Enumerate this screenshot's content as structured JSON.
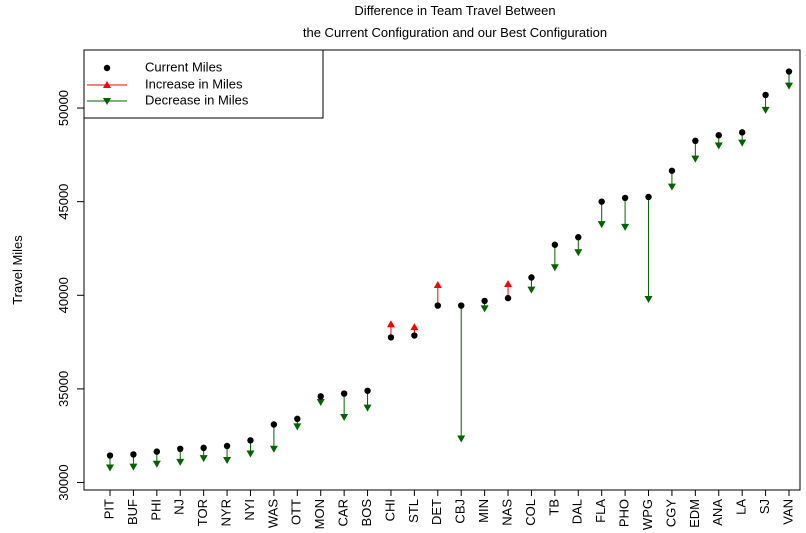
{
  "chart_data": {
    "type": "arrow-dot",
    "title": [
      "Difference in Team Travel Between",
      "the Current Configuration and our Best Configuration"
    ],
    "y_label": "Travel Miles",
    "categories": [
      "PIT",
      "BUF",
      "PHI",
      "NJ",
      "TOR",
      "NYR",
      "NYI",
      "WAS",
      "OTT",
      "MON",
      "CAR",
      "BOS",
      "CHI",
      "STL",
      "DET",
      "CBJ",
      "MIN",
      "NAS",
      "COL",
      "TB",
      "DAL",
      "FLA",
      "PHO",
      "WPG",
      "CGY",
      "EDM",
      "ANA",
      "LA",
      "SJ",
      "VAN"
    ],
    "series": [
      {
        "name": "Current Miles",
        "color": "#000000",
        "values": [
          31440,
          31500,
          31650,
          31800,
          31850,
          31950,
          32250,
          33100,
          33400,
          34600,
          34750,
          34900,
          37750,
          37850,
          39450,
          39450,
          39700,
          39850,
          40950,
          42700,
          43100,
          45000,
          45200,
          45250,
          46650,
          48250,
          48550,
          48700,
          50700,
          51950
        ]
      }
    ],
    "best_values": [
      30800,
      30850,
      31000,
      31100,
      31300,
      31200,
      31550,
      31800,
      33000,
      34300,
      33500,
      34000,
      38450,
      38300,
      40550,
      32350,
      39300,
      40600,
      40300,
      41500,
      42300,
      43800,
      43650,
      39800,
      45800,
      47300,
      48000,
      48150,
      49900,
      51200
    ],
    "increase": {
      "name": "Increase in Miles",
      "color": "#ff0000"
    },
    "decrease": {
      "name": "Decrease in Miles",
      "color": "#006400"
    },
    "ylim": [
      29600,
      53100
    ],
    "yticks": [
      30000,
      35000,
      40000,
      45000,
      50000
    ],
    "legend": "top-left"
  }
}
